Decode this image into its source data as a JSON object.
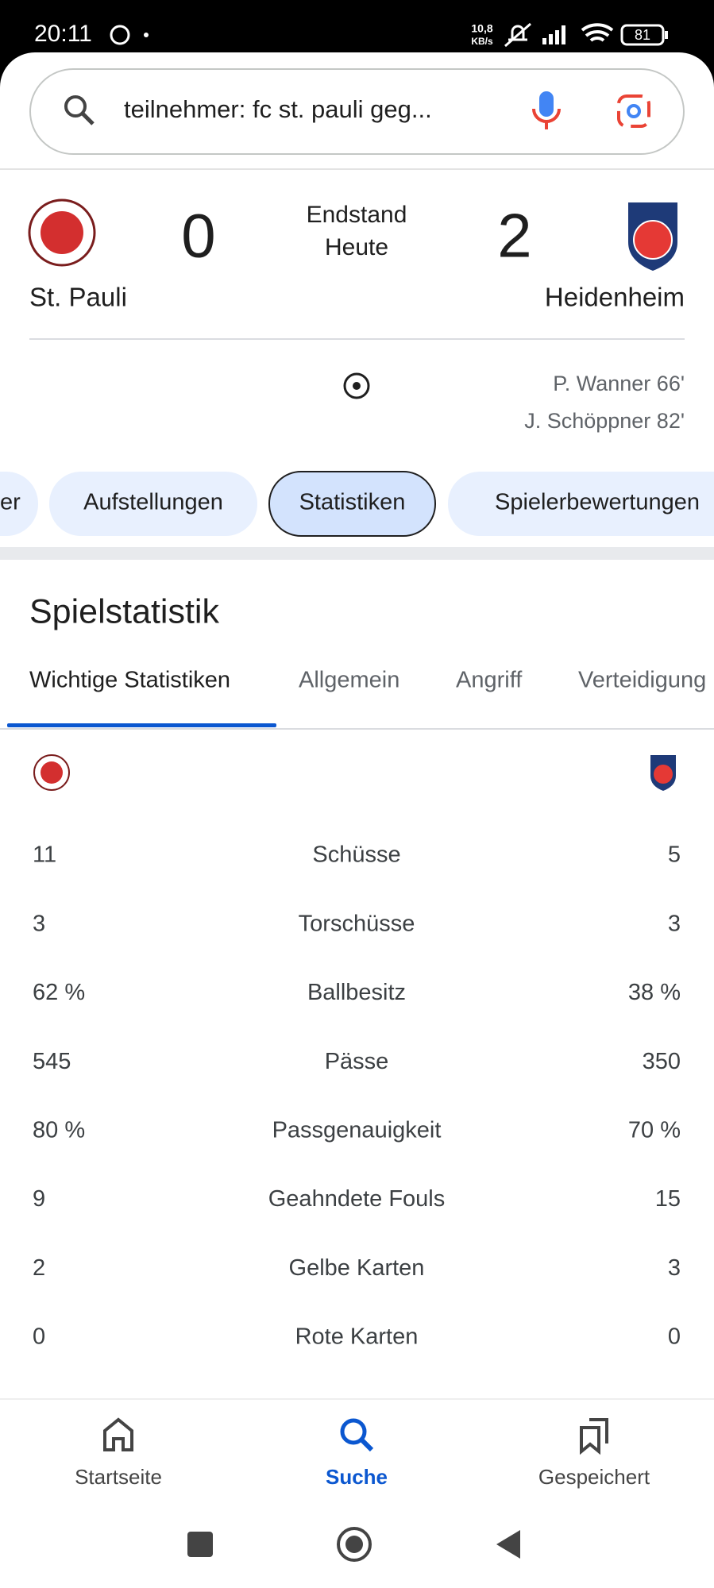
{
  "status_bar": {
    "time": "20:11",
    "network_speed": "10,8",
    "network_unit": "KB/s",
    "battery": "81"
  },
  "search": {
    "query": "teilnehmer: fc st. pauli geg..."
  },
  "match": {
    "home": {
      "name": "St. Pauli",
      "score": "0"
    },
    "away": {
      "name": "Heidenheim",
      "score": "2"
    },
    "status": "Endstand",
    "date": "Heute",
    "scorers": [
      "P. Wanner 66'",
      "J. Schöppner 82'"
    ]
  },
  "chips": [
    "er",
    "Aufstellungen",
    "Statistiken",
    "Spielerbewertungen"
  ],
  "stats": {
    "title": "Spielstatistik",
    "tabs": [
      "Wichtige Statistiken",
      "Allgemein",
      "Angriff",
      "Verteidigung"
    ],
    "rows": [
      {
        "home": "11",
        "label": "Schüsse",
        "away": "5"
      },
      {
        "home": "3",
        "label": "Torschüsse",
        "away": "3"
      },
      {
        "home": "62 %",
        "label": "Ballbesitz",
        "away": "38 %"
      },
      {
        "home": "545",
        "label": "Pässe",
        "away": "350"
      },
      {
        "home": "80 %",
        "label": "Passgenauigkeit",
        "away": "70 %"
      },
      {
        "home": "9",
        "label": "Geahndete Fouls",
        "away": "15"
      },
      {
        "home": "2",
        "label": "Gelbe Karten",
        "away": "3"
      },
      {
        "home": "0",
        "label": "Rote Karten",
        "away": "0"
      }
    ]
  },
  "nav": [
    "Startseite",
    "Suche",
    "Gespeichert"
  ]
}
